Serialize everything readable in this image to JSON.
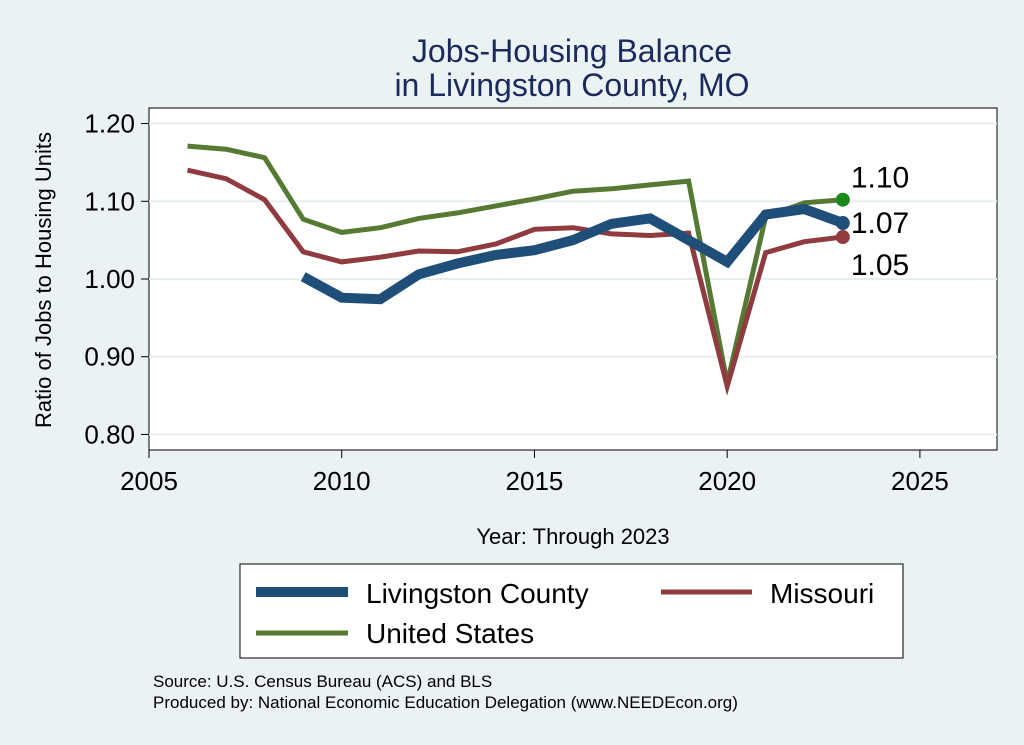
{
  "chart_data": {
    "type": "line",
    "title": [
      "Jobs-Housing Balance",
      "in Livingston County, MO"
    ],
    "xlabel": "Year: Through 2023",
    "ylabel": "Ratio of Jobs to Housing Units",
    "xlim": [
      2005,
      2027
    ],
    "ylim": [
      0.78,
      1.22
    ],
    "x_ticks": [
      2005,
      2010,
      2015,
      2020,
      2025
    ],
    "x_tick_labels": [
      "2005",
      "2010",
      "2015",
      "2020",
      "2025"
    ],
    "y_ticks": [
      0.8,
      0.9,
      1.0,
      1.1,
      1.2
    ],
    "y_tick_labels": [
      "0.80",
      "0.90",
      "1.00",
      "1.10",
      "1.20"
    ],
    "grid": true,
    "legend_position": "bottom",
    "series": [
      {
        "name": "Livingston County",
        "color": "#1f4e79",
        "x": [
          2009,
          2010,
          2011,
          2012,
          2013,
          2014,
          2015,
          2016,
          2017,
          2018,
          2019,
          2020,
          2021,
          2022,
          2023
        ],
        "values": [
          1.003,
          0.976,
          0.974,
          1.006,
          1.02,
          1.031,
          1.037,
          1.05,
          1.071,
          1.078,
          1.05,
          1.022,
          1.083,
          1.09,
          1.072
        ],
        "end_label": "1.07"
      },
      {
        "name": "Missouri",
        "color": "#8f3b3f",
        "x": [
          2006,
          2007,
          2008,
          2009,
          2010,
          2011,
          2012,
          2013,
          2014,
          2015,
          2016,
          2017,
          2018,
          2019,
          2020,
          2021,
          2022,
          2023
        ],
        "values": [
          1.14,
          1.129,
          1.102,
          1.035,
          1.022,
          1.028,
          1.036,
          1.035,
          1.045,
          1.064,
          1.066,
          1.058,
          1.056,
          1.059,
          0.862,
          1.034,
          1.048,
          1.054
        ],
        "end_label": "1.05"
      },
      {
        "name": "United States",
        "color": "#567a33",
        "x": [
          2006,
          2007,
          2008,
          2009,
          2010,
          2011,
          2012,
          2013,
          2014,
          2015,
          2016,
          2017,
          2018,
          2019,
          2020,
          2021,
          2022,
          2023
        ],
        "values": [
          1.171,
          1.167,
          1.156,
          1.077,
          1.06,
          1.066,
          1.078,
          1.085,
          1.094,
          1.103,
          1.113,
          1.116,
          1.121,
          1.126,
          0.866,
          1.08,
          1.098,
          1.102
        ],
        "end_label": "1.10",
        "end_marker_color": "#1b8a1b"
      }
    ],
    "source_lines": [
      "Source: U.S. Census Bureau (ACS) and BLS",
      "Produced by: National Economic Education Delegation (www.NEEDEcon.org)"
    ]
  }
}
